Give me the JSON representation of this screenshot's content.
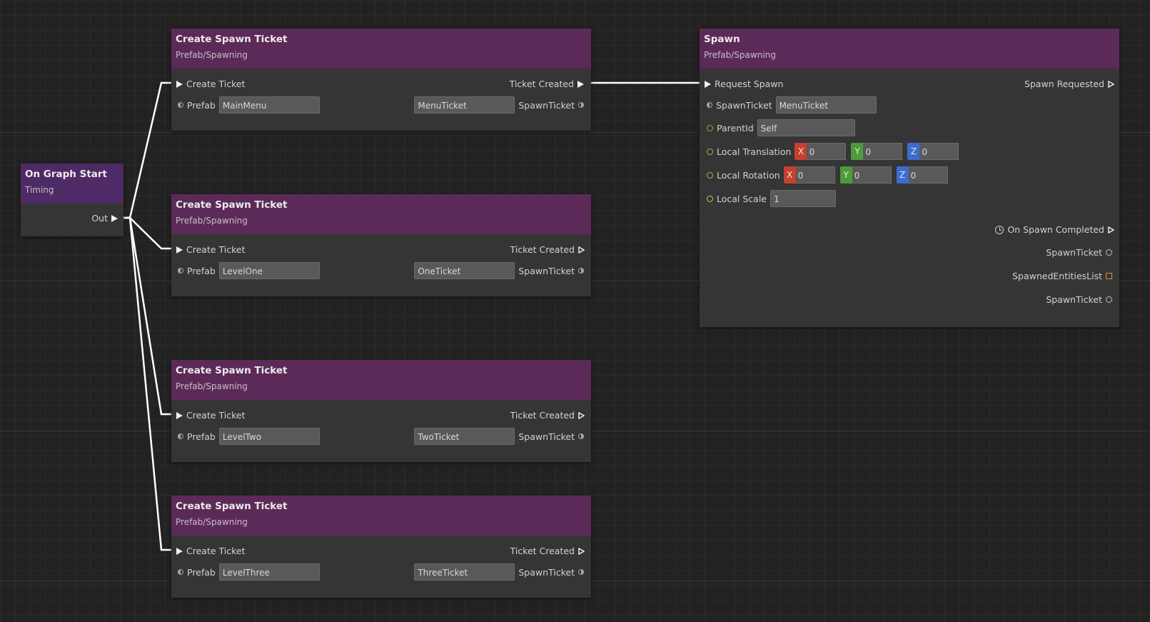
{
  "graph_start": {
    "title": "On Graph Start",
    "category": "Timing",
    "out_label": "Out"
  },
  "create_nodes": [
    {
      "title": "Create Spawn Ticket",
      "category": "Prefab/Spawning",
      "in_label": "Create Ticket",
      "out_label": "Ticket Created",
      "prefab_label": "Prefab",
      "prefab_value": "MainMenu",
      "ticket_value": "MenuTicket",
      "ticket_label": "SpawnTicket"
    },
    {
      "title": "Create Spawn Ticket",
      "category": "Prefab/Spawning",
      "in_label": "Create Ticket",
      "out_label": "Ticket Created",
      "prefab_label": "Prefab",
      "prefab_value": "LevelOne",
      "ticket_value": "OneTicket",
      "ticket_label": "SpawnTicket"
    },
    {
      "title": "Create Spawn Ticket",
      "category": "Prefab/Spawning",
      "in_label": "Create Ticket",
      "out_label": "Ticket Created",
      "prefab_label": "Prefab",
      "prefab_value": "LevelTwo",
      "ticket_value": "TwoTicket",
      "ticket_label": "SpawnTicket"
    },
    {
      "title": "Create Spawn Ticket",
      "category": "Prefab/Spawning",
      "in_label": "Create Ticket",
      "out_label": "Ticket Created",
      "prefab_label": "Prefab",
      "prefab_value": "LevelThree",
      "ticket_value": "ThreeTicket",
      "ticket_label": "SpawnTicket"
    }
  ],
  "spawn": {
    "title": "Spawn",
    "category": "Prefab/Spawning",
    "in_label": "Request Spawn",
    "out_label": "Spawn Requested",
    "ticket_label": "SpawnTicket",
    "ticket_value": "MenuTicket",
    "parent_label": "ParentId",
    "parent_value": "Self",
    "translation_label": "Local Translation",
    "translation": {
      "x": "0",
      "y": "0",
      "z": "0"
    },
    "rotation_label": "Local Rotation",
    "rotation": {
      "x": "0",
      "y": "0",
      "z": "0"
    },
    "scale_label": "Local Scale",
    "scale_value": "1",
    "completed_label": "On Spawn Completed",
    "out_ticket_label": "SpawnTicket",
    "entities_label": "SpawnedEntitiesList",
    "out_ticket2_label": "SpawnTicket"
  },
  "axis_labels": {
    "x": "X",
    "y": "Y",
    "z": "Z"
  },
  "colors": {
    "node_header": "#5c2a58",
    "timing_header": "#4e2b66",
    "background": "#222222",
    "wire": "#ffffff"
  }
}
